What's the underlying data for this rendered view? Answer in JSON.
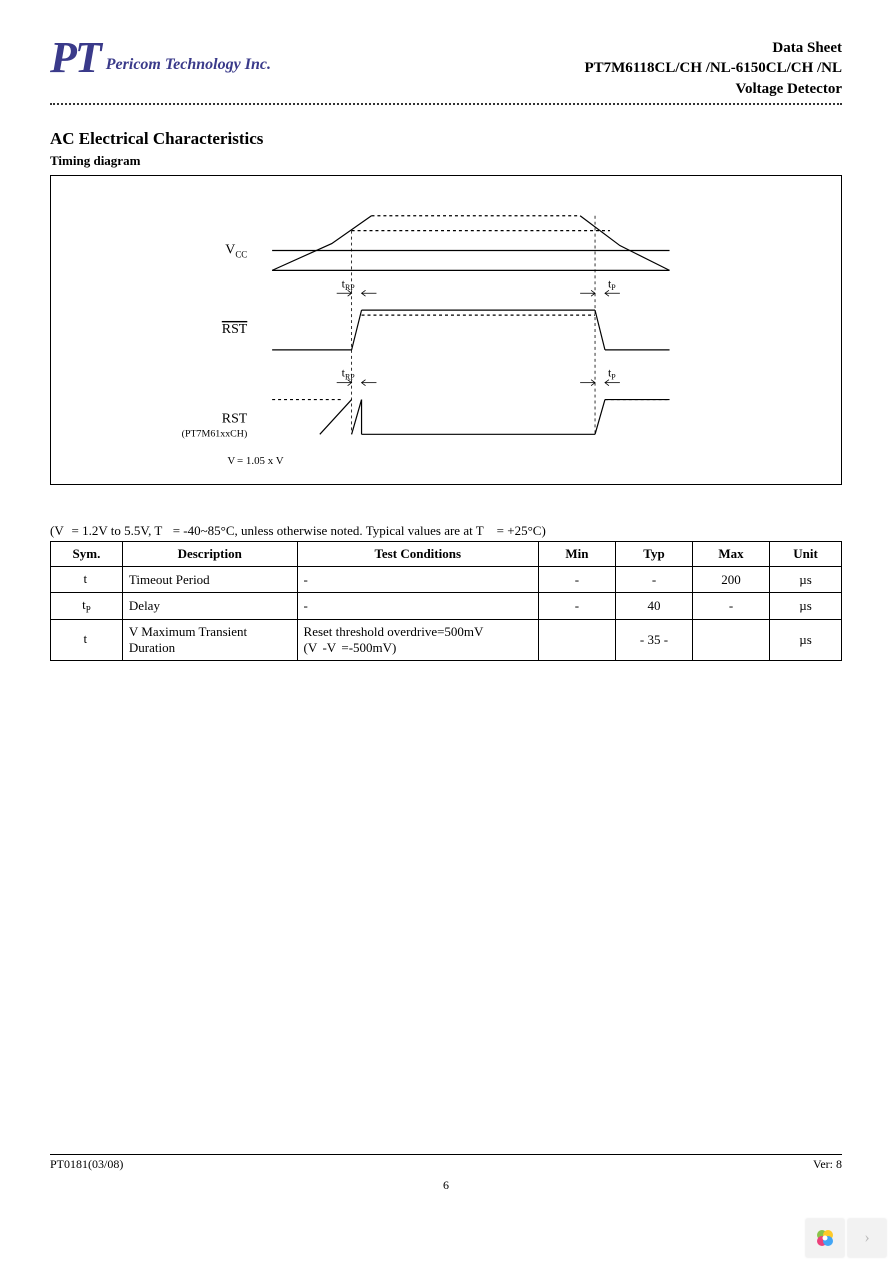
{
  "header": {
    "logo_initials": "PT",
    "logo_company": "Pericom Technology Inc.",
    "line1": "Data Sheet",
    "line2": "PT7M6118CL/CH /NL-6150CL/CH /NL",
    "line3": "Voltage Detector"
  },
  "section": {
    "title": "AC Electrical Characteristics",
    "subtitle": "Timing diagram"
  },
  "diagram": {
    "label_vcc": "V",
    "label_vcc_sub": "CC",
    "label_rst_bar": "RST",
    "label_rst": "RST",
    "label_rst_note": "(PT7M61xxCH)",
    "label_trp": "t",
    "label_trp_sub": "RP",
    "label_tp": "t",
    "label_tp_sub": "P",
    "label_vdet_eq": "V",
    "label_vdet_eq_rest": " = 1.05 x V",
    "colors": {
      "stroke": "#000000",
      "dash": "#000000"
    }
  },
  "conditions": "(V   = 1.2V to 5.5V, T    = -40~85°C, unless otherwise noted. Typical values are at T     = +25°C)",
  "table": {
    "headers": [
      "Sym.",
      "Description",
      "Test  Conditions",
      "Min",
      "Typ",
      "Max",
      "Unit"
    ],
    "rows": [
      {
        "sym": "t",
        "sym_sub": "",
        "desc": "Timeout Period",
        "cond": "-",
        "min": "-",
        "typ": "-",
        "max": "200",
        "unit": "µs"
      },
      {
        "sym": "t",
        "sym_sub": "P",
        "desc": "Delay",
        "cond": "-",
        "min": "-",
        "typ": "40",
        "max": "-",
        "unit": "µs"
      },
      {
        "sym": "t",
        "sym_sub": "",
        "desc_pre": "V",
        "desc": " Maximum Transient Duration",
        "cond": "Reset threshold overdrive=500mV\n(V  -V  =-500mV)",
        "min": "",
        "typ": "- 35 -",
        "max": "",
        "unit": "µs",
        "merged_vals": true
      }
    ]
  },
  "footer": {
    "left": "PT0181(03/08)",
    "right": "Ver:  8",
    "page": "6"
  }
}
